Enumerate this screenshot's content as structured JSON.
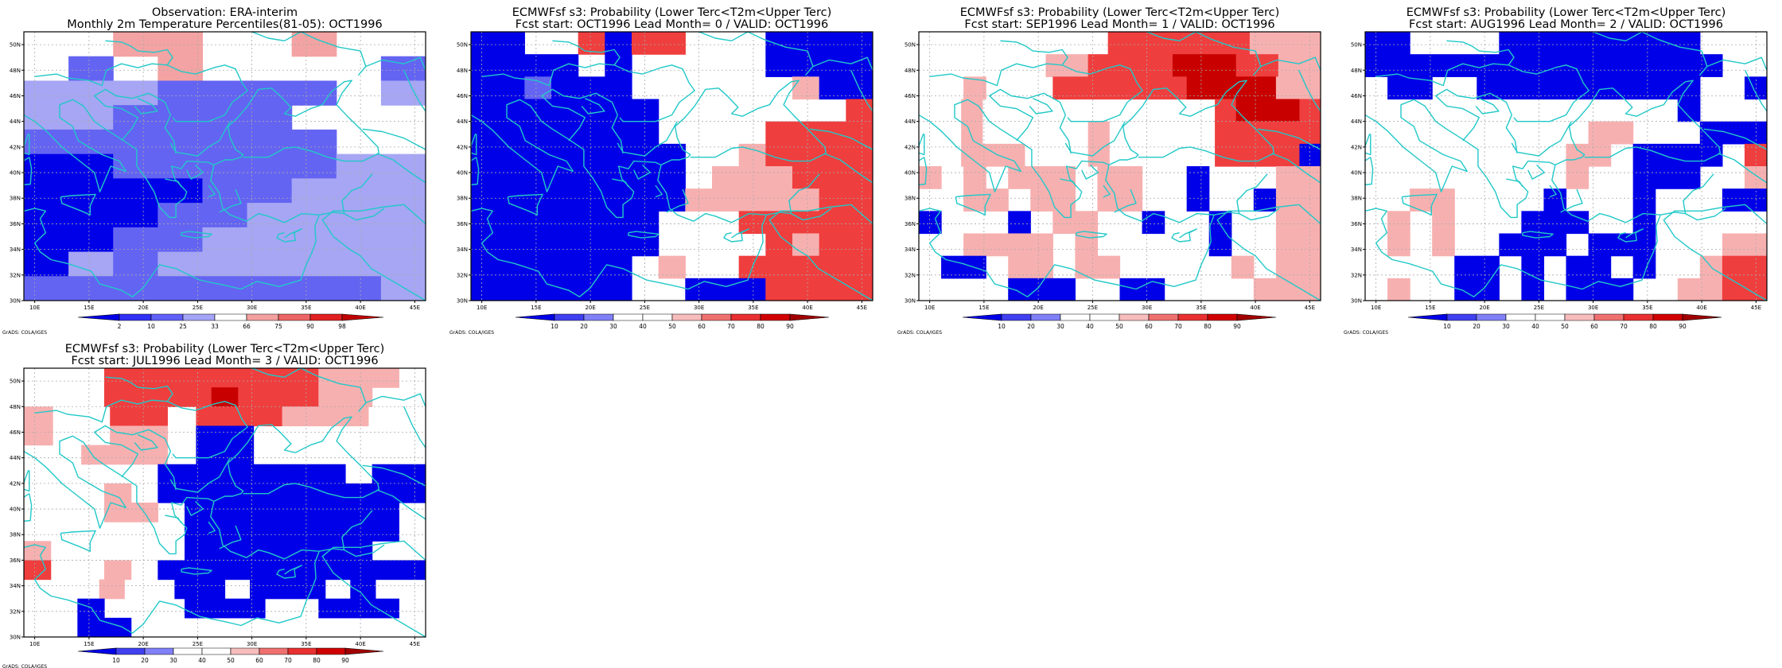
{
  "panels": [
    {
      "id": "obs",
      "title_line1": "Observation: ERA-interim",
      "title_line2": "Monthly 2m Temperature Percentiles(81-05): OCT1996",
      "colorbar": {
        "labels": [
          "2",
          "10",
          "25",
          "33",
          "66",
          "75",
          "90",
          "98"
        ],
        "colors": [
          "#0000e8",
          "#3030f5",
          "#6060f8",
          "#a4a4f8",
          "#ffffff",
          "#f4a0a0",
          "#ee6565",
          "#e02020",
          "#c00000"
        ]
      },
      "grid": [
        "..rr..r..",
        ".b.r....b",
        "mmmbbbb.m",
        "mmbbbb...",
        "bbbbbbb..",
        "BBbbbbbmm",
        "BBBBbbmmm",
        "BBBbbmmmm",
        "BBbbmmmmm",
        "Bmbmmmmmm",
        "bbbbbbbbm"
      ]
    },
    {
      "id": "lead0",
      "title_line1": "ECMWFsf s3: Probability (Lower Terc<T2m<Upper Terc)",
      "title_line2": "Fcst start: OCT1996  Lead Month= 0 / VALID: OCT1996",
      "colorbar": {
        "labels": [
          "10",
          "20",
          "30",
          "40",
          "50",
          "60",
          "70",
          "80",
          "90"
        ],
        "colors": [
          "#0000e8",
          "#4040f0",
          "#8080f8",
          "#ffffff",
          "#ffffff",
          "#f7bcbc",
          "#f07070",
          "#e83030",
          "#d00000",
          "#a00000"
        ]
      },
      "grid": [
        "BB..RBRR...BBBB",
        "BBBB.B.....BBBB",
        "BBbBBB......pBB",
        "BBBBBBB.......R",
        "BBBBBBB....RRRR",
        "BBBBBBBB..pRRRR",
        "BBBBBBBB.pppRRR",
        "BBBBBBBBpppppRR",
        "BBBBBBB...RRRRR",
        "BBBBBBB....RpRR",
        "BBBBBB.p..RRRRR",
        "BBBBBB..BBBRRRR"
      ]
    },
    {
      "id": "lead1",
      "title_line1": "ECMWFsf s3: Probability (Lower Terc<T2m<Upper Terc)",
      "title_line2": "Fcst start: SEP1996  Lead Month= 1 / VALID: OCT1996",
      "colorbar": {
        "labels": [
          "10",
          "20",
          "30",
          "40",
          "50",
          "60",
          "70",
          "80",
          "90"
        ],
        "colors": [
          "#0000e8",
          "#4040f0",
          "#8080f8",
          "#ffffff",
          "#ffffff",
          "#f7bcbc",
          "#f07070",
          "#e83030",
          "#d00000",
          "#a00000"
        ]
      },
      "grid": [
        "........RRRRRRppp",
        "......ppRRRRDDDRRpp",
        "..p...RRRRRRDDDDpp",
        "..p...........RDDDR",
        "..p.....p.....RRRRR",
        "..ppp...p.....RRRRB",
        "p.p.ppp.pp..B...pp",
        "..pp.pp.pp..B..Bpp",
        "B...B.pp..B..B..pp",
        "..pppp.p.....B..pp",
        ".BB.pp.pp.....p.pp",
        "....BBB..BB....ppp"
      ]
    },
    {
      "id": "lead2",
      "title_line1": "ECMWFsf s3: Probability (Lower Terc<T2m<Upper Terc)",
      "title_line2": "Fcst start: AUG1996  Lead Month= 2 / VALID: OCT1996",
      "colorbar": {
        "labels": [
          "10",
          "20",
          "30",
          "40",
          "50",
          "60",
          "70",
          "80",
          "90"
        ],
        "colors": [
          "#0000e8",
          "#4040f0",
          "#8080f8",
          "#ffffff",
          "#ffffff",
          "#f7bcbc",
          "#f07070",
          "#e83030",
          "#d00000",
          "#a00000"
        ]
      },
      "grid": [
        "BB....BBBBBBBBB...",
        "BBBBBBBBBBBBBBBB..",
        ".BB..BBBBBBBBBB..B",
        "..............B...",
        "..........pp...BBB",
        ".........pp.BBBB.R",
        ".........p..BBB..p",
        "..pp....B...B...BB",
        ".p.p...BBB..B.....",
        ".p.p..BBB.BBB...pp",
        "....BB.B.BB.B..pRR",
        ".p..BB.B.BBB..ppRR"
      ]
    },
    {
      "id": "lead3",
      "title_line1": "ECMWFsf s3: Probability (Lower Terc<T2m<Upper Terc)",
      "title_line2": "Fcst start: JUL1996  Lead Month= 3 / VALID: OCT1996",
      "colorbar": {
        "labels": [
          "10",
          "20",
          "30",
          "40",
          "50",
          "60",
          "70",
          "80",
          "90"
        ],
        "colors": [
          "#0000e8",
          "#4040f0",
          "#8080f8",
          "#ffffff",
          "#ffffff",
          "#f7bcbc",
          "#f07070",
          "#e83030",
          "#d00000",
          "#a00000"
        ]
      },
      "grid": [
        "...RRRRRRRRppp.",
        "...RRRRDRRRpp..",
        "p..RR.RRRppp..",
        "p..pp.BB......",
        "..ppp.BB......",
        ".....BBBBBBB.BB",
        "...p.BBBBBBBBBB",
        "...pp.BBBBBBBB.",
        "......BBBBBBBB.",
        "p.....BBBBBBB..",
        "R..p.BBBBBBBBBB",
        "...p..BB.BBB.B..",
        "..B...BBB..BBB.",
        "..BB..........."
      ]
    }
  ],
  "axes": {
    "x_labels": [
      "10E",
      "15E",
      "20E",
      "25E",
      "30E",
      "35E",
      "40E",
      "45E"
    ],
    "y_labels": [
      "50N",
      "48N",
      "46N",
      "44N",
      "42N",
      "40N",
      "38N",
      "36N",
      "34N",
      "32N",
      "30N"
    ]
  },
  "credit": "GrADS: COLA/IGES",
  "colors": {
    "coast": "#22c8c8",
    "gridline": "#aaaaaa",
    "frame": "#000000"
  }
}
